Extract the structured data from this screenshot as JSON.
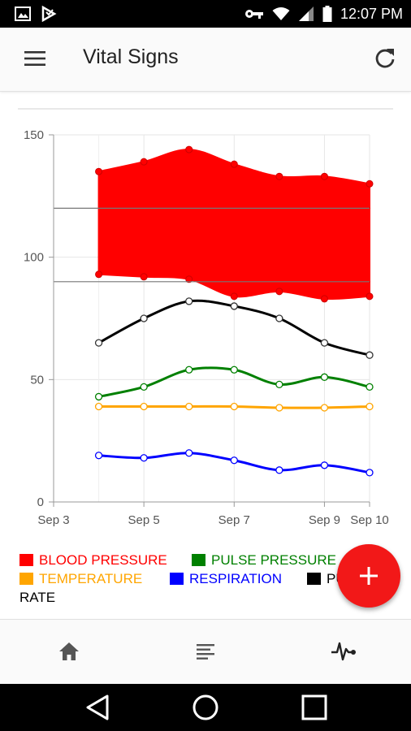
{
  "status_bar": {
    "time": "12:07 PM",
    "icons": [
      "image-icon",
      "assistant-icon",
      "key-icon",
      "wifi-icon",
      "signal-icon",
      "battery-icon"
    ]
  },
  "app_bar": {
    "title": "Vital Signs",
    "menu_icon": "menu-icon",
    "refresh_icon": "refresh-icon"
  },
  "chart_data": {
    "type": "line",
    "title": "",
    "xlabel": "",
    "ylabel": "",
    "ylim": [
      0,
      150
    ],
    "yticks": [
      0,
      50,
      100,
      150
    ],
    "xlim": [
      "2016-09-03",
      "2016-09-10"
    ],
    "xticks": [
      "Sep 3",
      "Sep 5",
      "Sep 7",
      "Sep 9",
      "Sep 10"
    ],
    "grid": true,
    "legend_position": "bottom",
    "reference_lines": [
      120,
      90
    ],
    "x": [
      "2016-09-04",
      "2016-09-05",
      "2016-09-06",
      "2016-09-07",
      "2016-09-08",
      "2016-09-09",
      "2016-09-10"
    ],
    "series": [
      {
        "name": "BLOOD PRESSURE",
        "type": "range-area",
        "color": "#ff0000",
        "high": [
          135,
          139,
          144,
          138,
          133,
          133,
          130
        ],
        "low": [
          93,
          92,
          91,
          84,
          86,
          83,
          84
        ]
      },
      {
        "name": "PULSE PRESSURE",
        "color": "#008000",
        "values": [
          43,
          47,
          54,
          54,
          48,
          51,
          47
        ]
      },
      {
        "name": "TEMPERATURE",
        "color": "#ffa500",
        "values": [
          39,
          39,
          39,
          39,
          38.5,
          38.5,
          39
        ]
      },
      {
        "name": "RESPIRATION",
        "color": "#0000ff",
        "values": [
          19,
          18,
          20,
          17,
          13,
          15,
          12
        ]
      },
      {
        "name": "PULSE RATE",
        "color": "#000000",
        "values": [
          65,
          75,
          82,
          80,
          75,
          65,
          60
        ]
      }
    ]
  },
  "legend": {
    "row1": [
      {
        "label": "BLOOD PRESSURE",
        "color": "#ff0000"
      },
      {
        "label": "PULSE PRESSURE",
        "color": "#008000"
      }
    ],
    "row2": [
      {
        "label": "TEMPERATURE",
        "color": "#ffa500"
      },
      {
        "label": "RESPIRATION",
        "color": "#0000ff"
      },
      {
        "label": "PULSE",
        "color": "#000000"
      }
    ],
    "row3_text": "RATE"
  },
  "fab": {
    "icon": "plus-icon",
    "color": "#f21818"
  },
  "bottom_nav": {
    "items": [
      {
        "icon": "home-icon"
      },
      {
        "icon": "list-icon"
      },
      {
        "icon": "vitals-icon"
      }
    ]
  },
  "system_nav": [
    "back-icon",
    "home-circle-icon",
    "recents-icon"
  ]
}
